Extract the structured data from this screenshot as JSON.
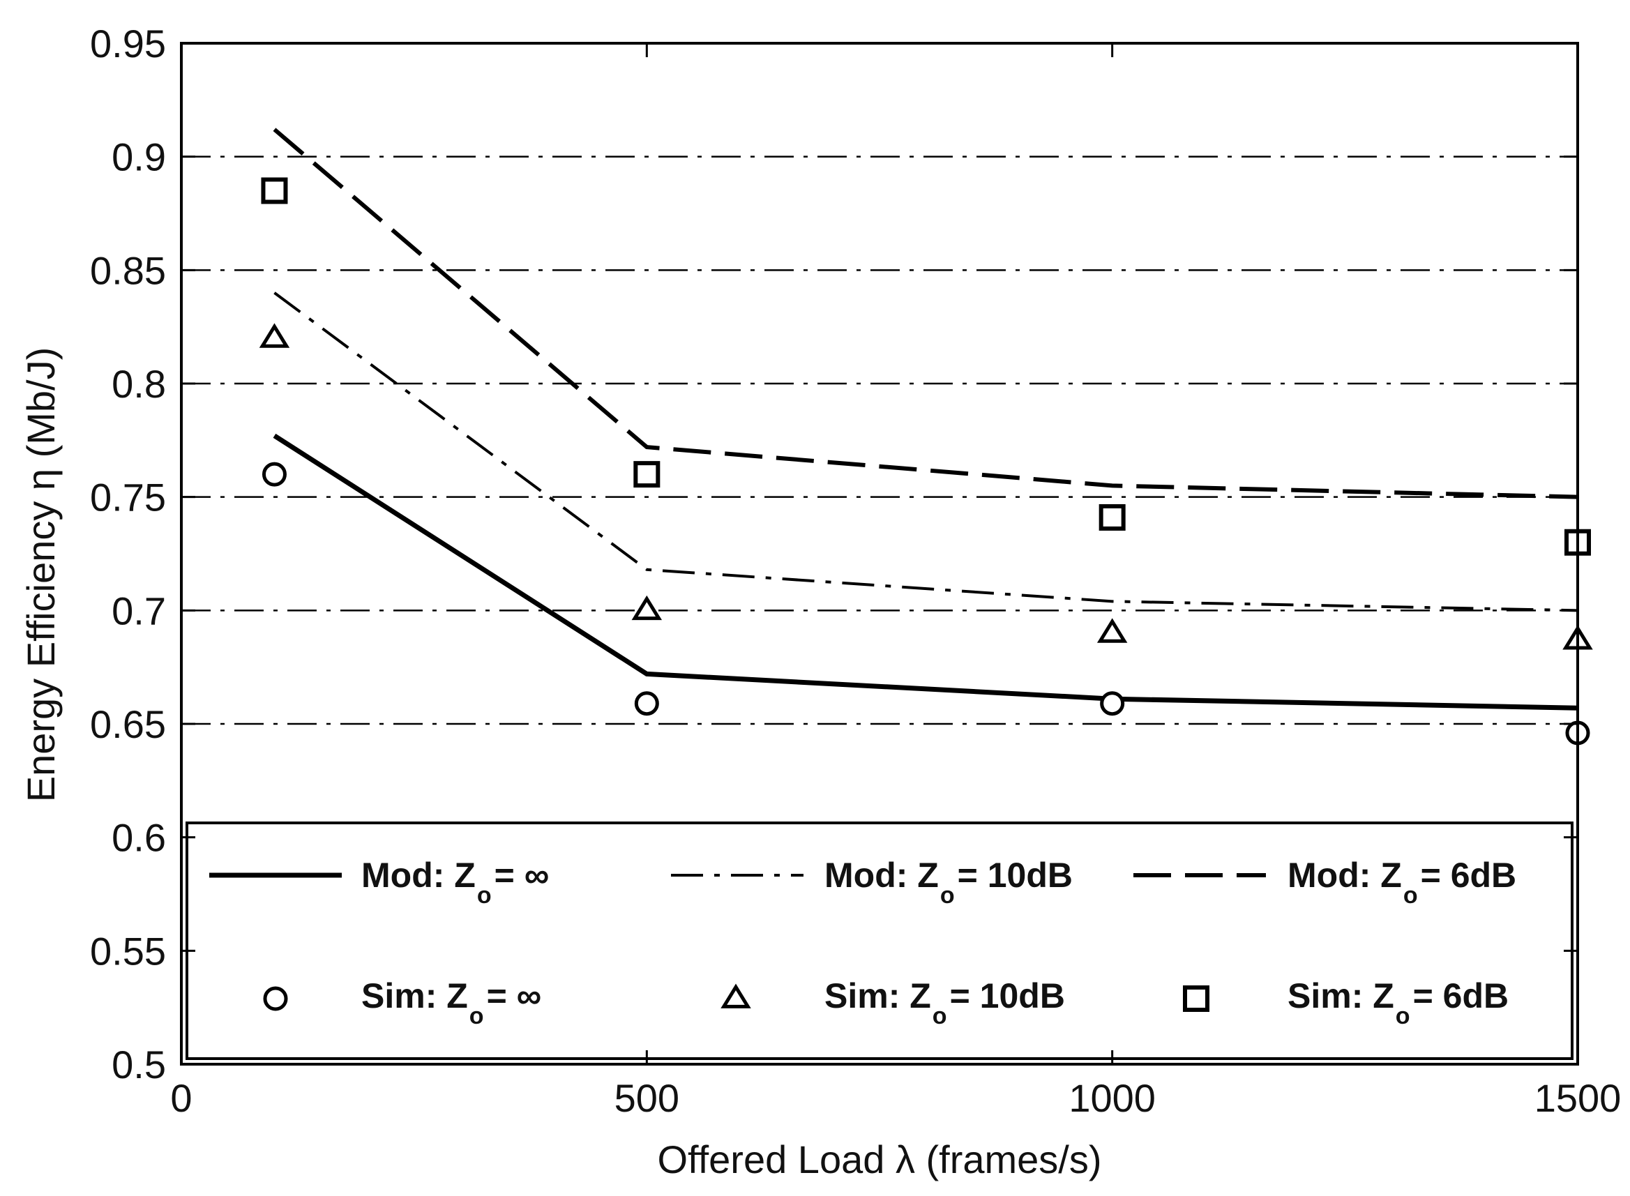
{
  "chart_data": {
    "type": "line",
    "title": "",
    "xlabel": "Offered Load λ (frames/s)",
    "ylabel": "Energy Efficiency  η (Mb/J)",
    "xlim": [
      0,
      1500
    ],
    "ylim": [
      0.5,
      0.95
    ],
    "xticks": [
      0,
      500,
      1000,
      1500
    ],
    "xtick_labels": [
      "0",
      "500",
      "1000",
      "1500"
    ],
    "yticks": [
      0.5,
      0.55,
      0.6,
      0.65,
      0.7,
      0.75,
      0.8,
      0.85,
      0.9,
      0.95
    ],
    "ytick_labels": [
      "0.5",
      "0.55",
      "0.6",
      "0.65",
      "0.7",
      "0.75",
      "0.8",
      "0.85",
      "0.9",
      "0.95"
    ],
    "grid": "horizontal dash-dot",
    "legend_position": "bottom",
    "series": [
      {
        "name": "Mod: Zₒ = ∞",
        "kind": "line",
        "style": "solid",
        "x": [
          100,
          500,
          1000,
          1500
        ],
        "values": [
          0.777,
          0.672,
          0.661,
          0.657
        ]
      },
      {
        "name": "Mod: Zₒ = 10dB",
        "kind": "line",
        "style": "dashdot",
        "x": [
          100,
          500,
          1000,
          1500
        ],
        "values": [
          0.84,
          0.718,
          0.704,
          0.7
        ]
      },
      {
        "name": "Mod: Zₒ = 6dB",
        "kind": "line",
        "style": "dashed",
        "x": [
          100,
          500,
          1000,
          1500
        ],
        "values": [
          0.912,
          0.772,
          0.755,
          0.75
        ]
      },
      {
        "name": "Sim: Zₒ = ∞",
        "kind": "marker",
        "marker": "circle",
        "x": [
          100,
          500,
          1000,
          1500
        ],
        "values": [
          0.76,
          0.659,
          0.659,
          0.646
        ]
      },
      {
        "name": "Sim: Zₒ = 10dB",
        "kind": "marker",
        "marker": "triangle",
        "x": [
          100,
          500,
          1000,
          1500
        ],
        "values": [
          0.82,
          0.7,
          0.69,
          0.687
        ]
      },
      {
        "name": "Sim: Zₒ = 6dB",
        "kind": "marker",
        "marker": "square",
        "x": [
          100,
          500,
          1000,
          1500
        ],
        "values": [
          0.885,
          0.76,
          0.741,
          0.73
        ]
      }
    ],
    "legend": [
      {
        "prefix": "Mod: Z",
        "sub": "o",
        "suffix": " = ∞",
        "symbol": "solid"
      },
      {
        "prefix": "Mod: Z",
        "sub": "o",
        "suffix": " = 10dB",
        "symbol": "dashdot"
      },
      {
        "prefix": "Mod: Z",
        "sub": "o",
        "suffix": " = 6dB",
        "symbol": "dashed"
      },
      {
        "prefix": "Sim: Z",
        "sub": "o",
        "suffix": " = ∞",
        "symbol": "circle"
      },
      {
        "prefix": "Sim: Z",
        "sub": "o",
        "suffix": " = 10dB",
        "symbol": "triangle"
      },
      {
        "prefix": "Sim: Z",
        "sub": "o",
        "suffix": " = 6dB",
        "symbol": "square"
      }
    ]
  }
}
